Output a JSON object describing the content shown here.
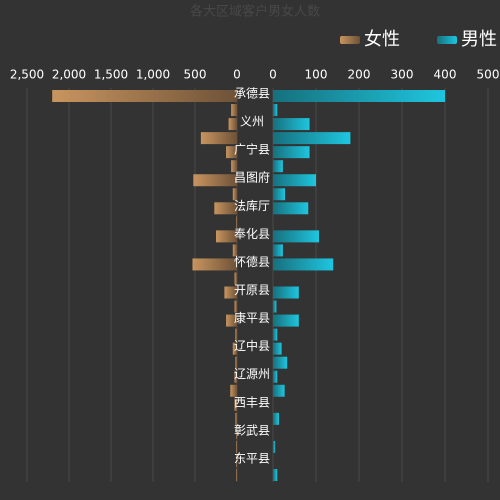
{
  "chart_data": {
    "type": "butterfly-bar",
    "title": "各大区域客户男女人数",
    "categories": [
      "承德县",
      null,
      "义州",
      null,
      "广宁县",
      null,
      "昌图府",
      null,
      "法库厅",
      null,
      "奉化县",
      null,
      "怀德县",
      null,
      "开原县",
      null,
      "康平县",
      null,
      "辽中县",
      null,
      "辽源州",
      null,
      "西丰县",
      null,
      "彰武县",
      null,
      "东平县",
      null
    ],
    "series": [
      {
        "name": "女性",
        "axis": "x2",
        "color": [
          "#6e5238",
          "#c9955f"
        ],
        "values": [
          2200,
          70,
          100,
          430,
          130,
          70,
          520,
          50,
          270,
          10,
          250,
          50,
          530,
          30,
          150,
          30,
          130,
          20,
          50,
          20,
          30,
          80,
          30,
          20,
          10,
          10,
          10,
          10
        ]
      },
      {
        "name": "男性",
        "color": [
          "#17707e",
          "#1ec6df"
        ],
        "values": [
          400,
          10,
          85,
          180,
          85,
          23,
          100,
          28,
          82,
          0,
          107,
          23,
          140,
          0,
          60,
          8,
          60,
          10,
          20,
          33,
          10,
          27,
          0,
          14,
          0,
          5,
          0,
          10
        ]
      }
    ],
    "x2lim": [
      0,
      2500
    ],
    "x2ticks": [
      {
        "value": 2500,
        "label": "2,500"
      },
      {
        "value": 2000,
        "label": "2,000"
      },
      {
        "value": 1500,
        "label": "1,500"
      },
      {
        "value": 1000,
        "label": "1,000"
      },
      500,
      0
    ],
    "xlim": [
      0,
      500
    ],
    "xticks": [
      0,
      100,
      200,
      300,
      400,
      500
    ],
    "grid": true,
    "legend": "top-right"
  }
}
